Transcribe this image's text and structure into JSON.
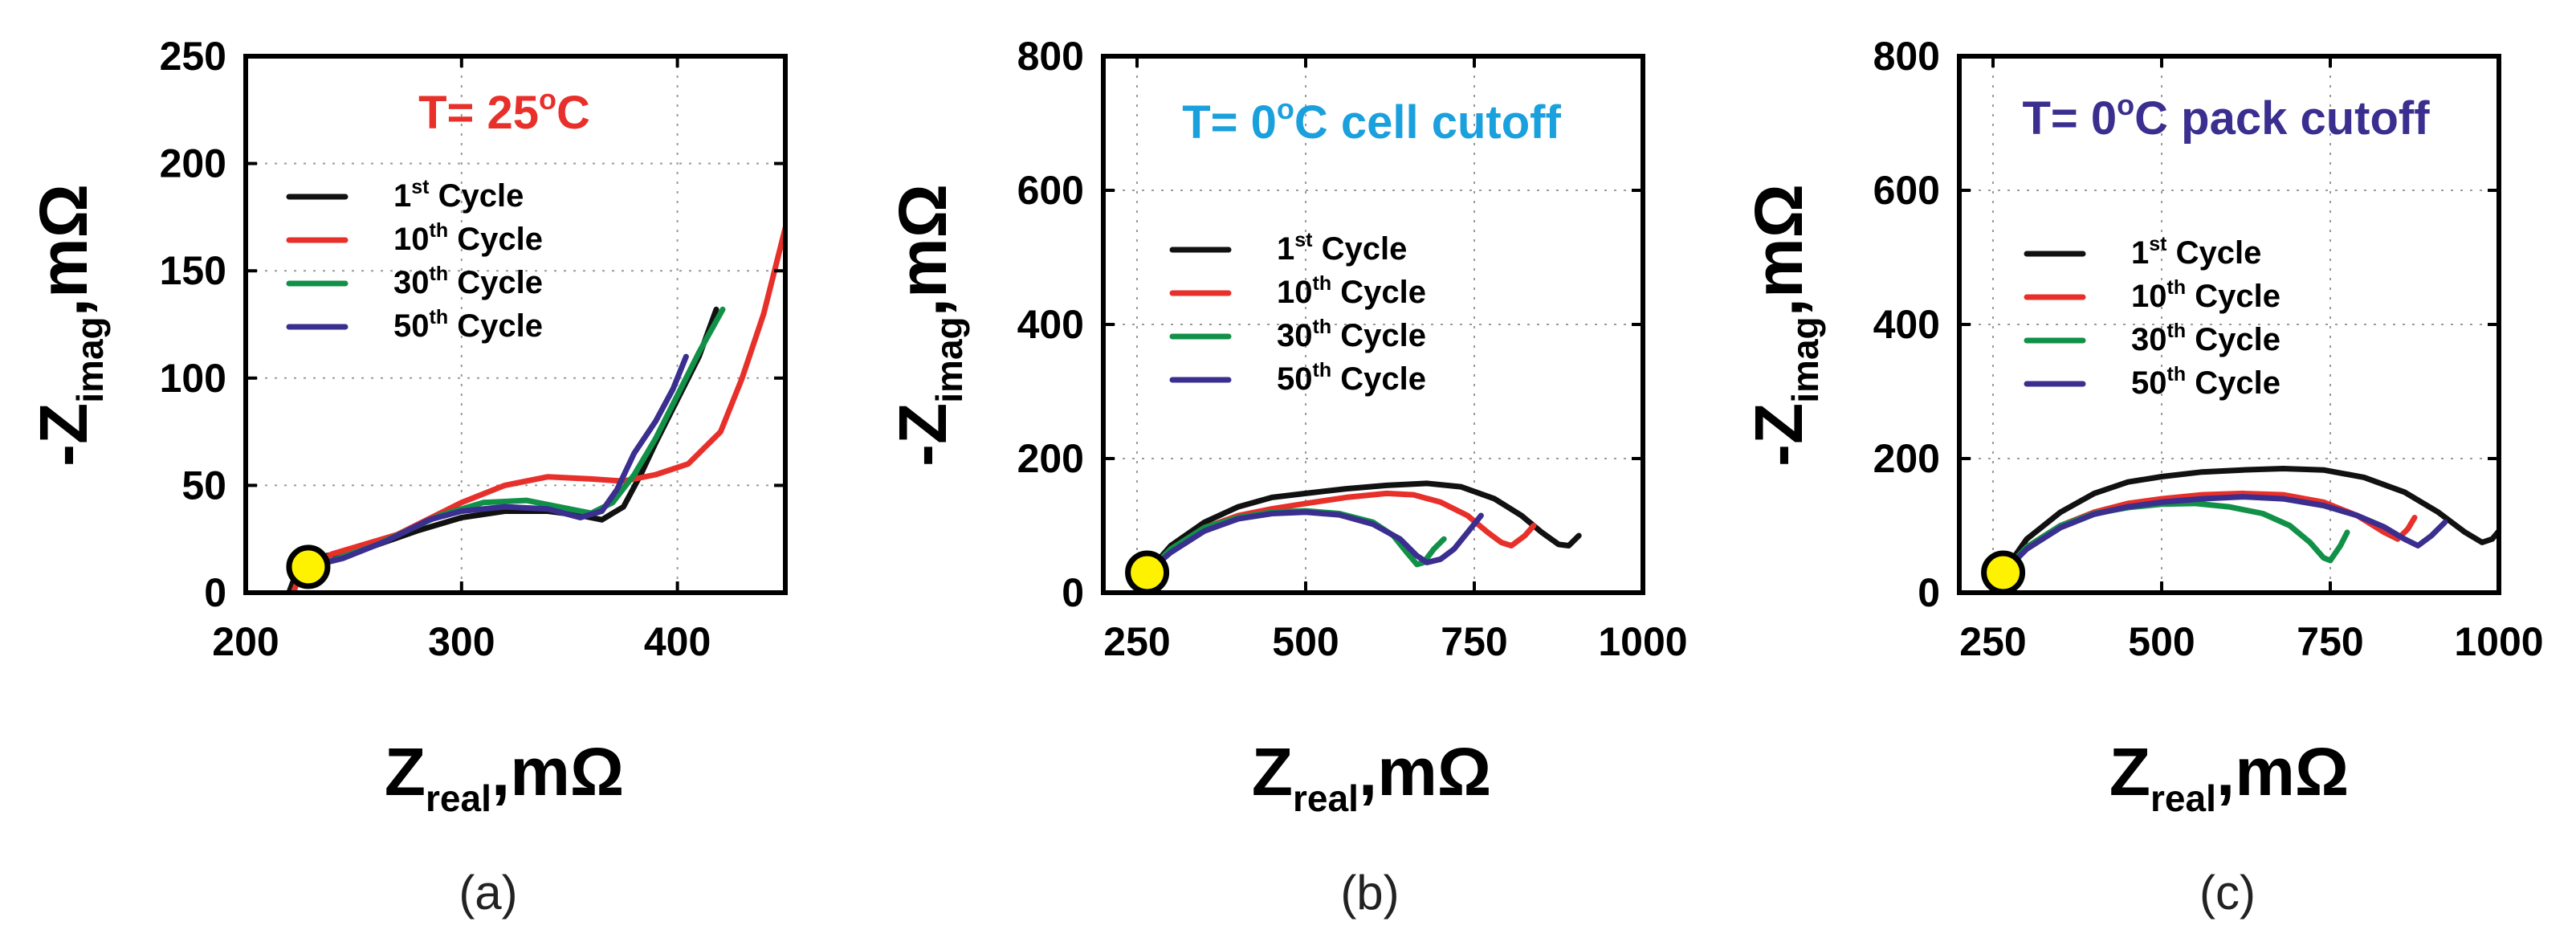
{
  "colors": {
    "first": "#111111",
    "tenth": "#e8302b",
    "thirtieth": "#119148",
    "fiftieth": "#3a2e8f",
    "marker_fill": "#fff200",
    "title_a": "#e8302b",
    "title_b": "#1aa0dc",
    "title_c": "#3a2e8f"
  },
  "chart_data": [
    {
      "type": "line",
      "panel": "a",
      "caption": "(a)",
      "title": {
        "main": "T= 25",
        "sup": "o",
        "tail": "C"
      },
      "xlabel": {
        "main": "Z",
        "sub": "real",
        "tail": ",mΩ"
      },
      "ylabel": {
        "main": "-Z",
        "sub": "imag",
        "tail": ",mΩ"
      },
      "xlim": [
        200,
        450
      ],
      "ylim": [
        0,
        250
      ],
      "xticks": [
        200,
        300,
        400
      ],
      "yticks": [
        0,
        50,
        100,
        150,
        200,
        250
      ],
      "xtick_labels": [
        "200",
        "300",
        "400"
      ],
      "ytick_labels": [
        "0",
        "50",
        "100",
        "150",
        "200",
        "250"
      ],
      "legend_placement": "upper-left",
      "marker": {
        "x": 229,
        "y": 12
      },
      "series": [
        {
          "name_pre": "1",
          "name_sup": "st",
          "name_post": " Cycle",
          "color_key": "first",
          "points": [
            [
              220,
              0
            ],
            [
              223,
              8
            ],
            [
              232,
              16
            ],
            [
              260,
              22
            ],
            [
              280,
              29
            ],
            [
              300,
              35
            ],
            [
              320,
              38
            ],
            [
              340,
              38
            ],
            [
              355,
              36
            ],
            [
              365,
              34
            ],
            [
              375,
              40
            ],
            [
              383,
              55
            ],
            [
              390,
              70
            ],
            [
              400,
              90
            ],
            [
              410,
              110
            ],
            [
              418,
              132
            ]
          ]
        },
        {
          "name_pre": "10",
          "name_sup": "th",
          "name_post": " Cycle",
          "color_key": "tenth",
          "points": [
            [
              222,
              0
            ],
            [
              226,
              10
            ],
            [
              240,
              18
            ],
            [
              270,
              27
            ],
            [
              300,
              42
            ],
            [
              320,
              50
            ],
            [
              340,
              54
            ],
            [
              360,
              53
            ],
            [
              375,
              52
            ],
            [
              390,
              55
            ],
            [
              405,
              60
            ],
            [
              420,
              75
            ],
            [
              430,
              100
            ],
            [
              440,
              130
            ],
            [
              450,
              170
            ]
          ]
        },
        {
          "name_pre": "30",
          "name_sup": "th",
          "name_post": " Cycle",
          "color_key": "thirtieth",
          "points": [
            [
              226,
              10
            ],
            [
              240,
              15
            ],
            [
              260,
              22
            ],
            [
              290,
              36
            ],
            [
              310,
              42
            ],
            [
              330,
              43
            ],
            [
              345,
              40
            ],
            [
              360,
              37
            ],
            [
              370,
              42
            ],
            [
              380,
              55
            ],
            [
              390,
              72
            ],
            [
              400,
              92
            ],
            [
              410,
              112
            ],
            [
              421,
              132
            ]
          ]
        },
        {
          "name_pre": "50",
          "name_sup": "th",
          "name_post": " Cycle",
          "color_key": "fiftieth",
          "points": [
            [
              229,
              12
            ],
            [
              245,
              16
            ],
            [
              265,
              24
            ],
            [
              285,
              34
            ],
            [
              300,
              38
            ],
            [
              320,
              40
            ],
            [
              340,
              39
            ],
            [
              355,
              35
            ],
            [
              365,
              38
            ],
            [
              372,
              48
            ],
            [
              380,
              65
            ],
            [
              390,
              80
            ],
            [
              398,
              95
            ],
            [
              404,
              110
            ]
          ]
        }
      ]
    },
    {
      "type": "line",
      "panel": "b",
      "caption": "(b)",
      "title": {
        "main": "T= 0",
        "sup": "o",
        "tail": "C cell cutoff"
      },
      "xlabel": {
        "main": "Z",
        "sub": "real",
        "tail": ",mΩ"
      },
      "ylabel": {
        "main": "-Z",
        "sub": "imag",
        "tail": ",mΩ"
      },
      "xlim": [
        200,
        1000
      ],
      "ylim": [
        0,
        800
      ],
      "xticks": [
        250,
        500,
        750,
        1000
      ],
      "yticks": [
        0,
        200,
        400,
        600,
        800
      ],
      "xtick_labels": [
        "250",
        "500",
        "750",
        "1000"
      ],
      "ytick_labels": [
        "0",
        "200",
        "400",
        "600",
        "800"
      ],
      "legend_placement": "center-left",
      "marker": {
        "x": 265,
        "y": 30
      },
      "series": [
        {
          "name_pre": "1",
          "name_sup": "st",
          "name_post": " Cycle",
          "color_key": "first",
          "points": [
            [
              265,
              30
            ],
            [
              300,
              70
            ],
            [
              350,
              105
            ],
            [
              400,
              128
            ],
            [
              450,
              142
            ],
            [
              500,
              148
            ],
            [
              560,
              155
            ],
            [
              620,
              160
            ],
            [
              680,
              163
            ],
            [
              730,
              158
            ],
            [
              780,
              140
            ],
            [
              820,
              115
            ],
            [
              850,
              90
            ],
            [
              875,
              72
            ],
            [
              890,
              70
            ],
            [
              905,
              85
            ]
          ]
        },
        {
          "name_pre": "10",
          "name_sup": "th",
          "name_post": " Cycle",
          "color_key": "tenth",
          "points": [
            [
              265,
              30
            ],
            [
              300,
              65
            ],
            [
              350,
              97
            ],
            [
              400,
              115
            ],
            [
              450,
              125
            ],
            [
              500,
              133
            ],
            [
              560,
              142
            ],
            [
              620,
              148
            ],
            [
              660,
              146
            ],
            [
              700,
              135
            ],
            [
              740,
              115
            ],
            [
              770,
              90
            ],
            [
              790,
              75
            ],
            [
              805,
              70
            ],
            [
              825,
              85
            ],
            [
              838,
              100
            ]
          ]
        },
        {
          "name_pre": "30",
          "name_sup": "th",
          "name_post": " Cycle",
          "color_key": "thirtieth",
          "points": [
            [
              265,
              30
            ],
            [
              300,
              65
            ],
            [
              350,
              97
            ],
            [
              400,
              112
            ],
            [
              450,
              120
            ],
            [
              500,
              122
            ],
            [
              550,
              118
            ],
            [
              600,
              105
            ],
            [
              630,
              85
            ],
            [
              650,
              60
            ],
            [
              665,
              42
            ],
            [
              675,
              45
            ],
            [
              690,
              65
            ],
            [
              705,
              80
            ]
          ]
        },
        {
          "name_pre": "50",
          "name_sup": "th",
          "name_post": " Cycle",
          "color_key": "fiftieth",
          "points": [
            [
              265,
              30
            ],
            [
              300,
              60
            ],
            [
              350,
              92
            ],
            [
              400,
              110
            ],
            [
              450,
              118
            ],
            [
              500,
              120
            ],
            [
              550,
              116
            ],
            [
              600,
              102
            ],
            [
              640,
              80
            ],
            [
              665,
              55
            ],
            [
              680,
              45
            ],
            [
              700,
              50
            ],
            [
              720,
              65
            ],
            [
              740,
              90
            ],
            [
              760,
              115
            ]
          ]
        }
      ]
    },
    {
      "type": "line",
      "panel": "c",
      "caption": "(c)",
      "title": {
        "main": "T= 0",
        "sup": "o",
        "tail": "C pack cutoff"
      },
      "xlabel": {
        "main": "Z",
        "sub": "real",
        "tail": ",mΩ"
      },
      "ylabel": {
        "main": "-Z",
        "sub": "imag",
        "tail": ",mΩ"
      },
      "xlim": [
        200,
        1000
      ],
      "ylim": [
        0,
        800
      ],
      "xticks": [
        250,
        500,
        750,
        1000
      ],
      "yticks": [
        0,
        200,
        400,
        600,
        800
      ],
      "xtick_labels": [
        "250",
        "500",
        "750",
        "1000"
      ],
      "ytick_labels": [
        "0",
        "200",
        "400",
        "600",
        "800"
      ],
      "legend_placement": "center-left",
      "marker": {
        "x": 265,
        "y": 30
      },
      "series": [
        {
          "name_pre": "1",
          "name_sup": "st",
          "name_post": " Cycle",
          "color_key": "first",
          "points": [
            [
              265,
              30
            ],
            [
              300,
              80
            ],
            [
              350,
              120
            ],
            [
              400,
              148
            ],
            [
              450,
              165
            ],
            [
              500,
              173
            ],
            [
              560,
              180
            ],
            [
              620,
              183
            ],
            [
              680,
              185
            ],
            [
              740,
              183
            ],
            [
              800,
              172
            ],
            [
              860,
              150
            ],
            [
              910,
              120
            ],
            [
              950,
              90
            ],
            [
              975,
              75
            ],
            [
              990,
              80
            ],
            [
              1000,
              92
            ]
          ]
        },
        {
          "name_pre": "10",
          "name_sup": "th",
          "name_post": " Cycle",
          "color_key": "tenth",
          "points": [
            [
              265,
              30
            ],
            [
              300,
              68
            ],
            [
              350,
              100
            ],
            [
              400,
              120
            ],
            [
              450,
              133
            ],
            [
              500,
              140
            ],
            [
              560,
              146
            ],
            [
              620,
              148
            ],
            [
              680,
              146
            ],
            [
              740,
              135
            ],
            [
              790,
              115
            ],
            [
              830,
              90
            ],
            [
              850,
              80
            ],
            [
              865,
              95
            ],
            [
              875,
              112
            ]
          ]
        },
        {
          "name_pre": "30",
          "name_sup": "th",
          "name_post": " Cycle",
          "color_key": "thirtieth",
          "points": [
            [
              265,
              30
            ],
            [
              300,
              68
            ],
            [
              350,
              100
            ],
            [
              400,
              118
            ],
            [
              450,
              127
            ],
            [
              500,
              132
            ],
            [
              550,
              133
            ],
            [
              600,
              128
            ],
            [
              650,
              118
            ],
            [
              690,
              100
            ],
            [
              720,
              75
            ],
            [
              740,
              52
            ],
            [
              750,
              48
            ],
            [
              765,
              70
            ],
            [
              775,
              90
            ]
          ]
        },
        {
          "name_pre": "50",
          "name_sup": "th",
          "name_post": " Cycle",
          "color_key": "fiftieth",
          "points": [
            [
              265,
              30
            ],
            [
              300,
              65
            ],
            [
              350,
              97
            ],
            [
              400,
              117
            ],
            [
              450,
              128
            ],
            [
              500,
              135
            ],
            [
              560,
              140
            ],
            [
              620,
              143
            ],
            [
              680,
              140
            ],
            [
              740,
              130
            ],
            [
              790,
              115
            ],
            [
              830,
              98
            ],
            [
              860,
              80
            ],
            [
              880,
              70
            ],
            [
              900,
              85
            ],
            [
              920,
              105
            ]
          ]
        }
      ]
    }
  ]
}
